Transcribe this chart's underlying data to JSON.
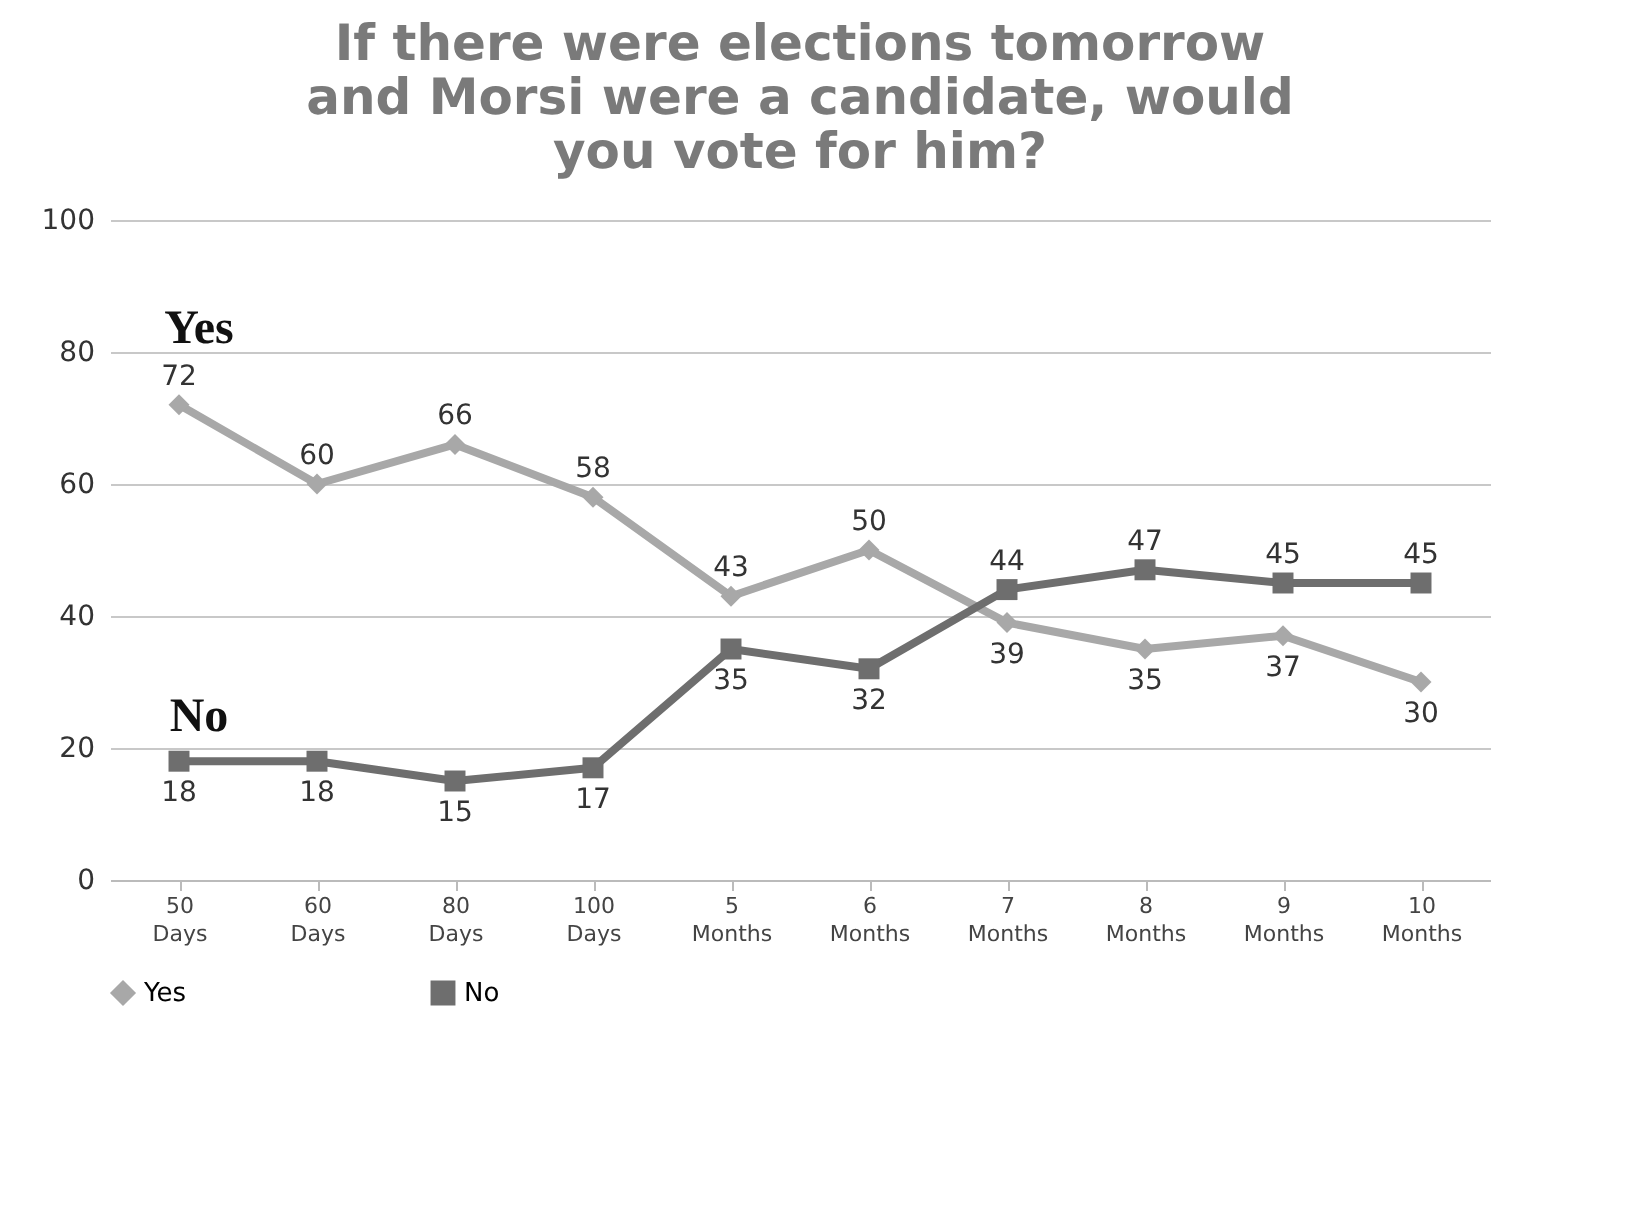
{
  "chart_data": {
    "type": "line",
    "title": "If there were elections tomorrow and Morsi were a candidate, would you vote for him?",
    "categories": [
      "50 Days",
      "60 Days",
      "80 Days",
      "100 Days",
      "5 Months",
      "6 Months",
      "7 Months",
      "8 Months",
      "9 Months",
      "10 Months"
    ],
    "series": [
      {
        "name": "Yes",
        "color": "#a8a8a8",
        "marker": "diamond",
        "values": [
          72,
          60,
          66,
          58,
          43,
          50,
          39,
          35,
          37,
          30
        ]
      },
      {
        "name": "No",
        "color": "#6e6e6e",
        "marker": "square",
        "values": [
          18,
          18,
          15,
          17,
          35,
          32,
          44,
          47,
          45,
          45
        ]
      }
    ],
    "ylim": [
      0,
      100
    ],
    "yticks": [
      0,
      20,
      40,
      60,
      80,
      100
    ],
    "grid": "y",
    "legend": "bottom",
    "data_labels": true,
    "line_style": "solid"
  }
}
